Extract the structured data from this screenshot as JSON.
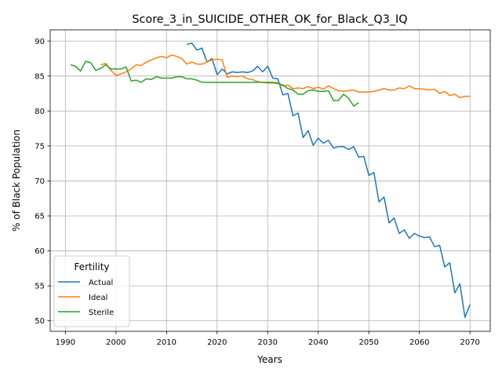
{
  "chart_data": {
    "type": "line",
    "title": "Score_3_in_SUICIDE_OTHER_OK_for_Black_Q3_IQ",
    "xlabel": "Years",
    "ylabel": "% of Black Population",
    "xlim": [
      1987,
      2074
    ],
    "ylim": [
      48.5,
      91.6
    ],
    "xticks": [
      1990,
      2000,
      2010,
      2020,
      2030,
      2040,
      2050,
      2060,
      2070
    ],
    "yticks": [
      50,
      55,
      60,
      65,
      70,
      75,
      80,
      85,
      90
    ],
    "grid": true,
    "legend": {
      "title": "Fertility",
      "position": "lower-left"
    },
    "series": [
      {
        "name": "Actual",
        "color": "#1f77b4",
        "x_start": 2014,
        "values": [
          89.5,
          89.7,
          88.7,
          89.0,
          87.0,
          87.5,
          85.2,
          86.0,
          85.3,
          85.6,
          85.5,
          85.6,
          85.5,
          85.7,
          86.4,
          85.6,
          86.4,
          84.7,
          84.6,
          82.3,
          82.5,
          79.3,
          79.7,
          76.2,
          77.2,
          75.1,
          76.1,
          75.4,
          75.8,
          74.7,
          74.9,
          74.9,
          74.5,
          74.9,
          73.4,
          73.5,
          70.8,
          71.2,
          67.0,
          67.7,
          64.0,
          64.7,
          62.5,
          63.0,
          61.8,
          62.5,
          62.1,
          61.9,
          62.0,
          60.6,
          60.8,
          57.7,
          58.3,
          54.0,
          55.3,
          50.5,
          52.3
        ]
      },
      {
        "name": "Ideal",
        "color": "#ff7f0e",
        "x_start": 1997,
        "values": [
          86.6,
          86.8,
          85.8,
          85.1,
          85.3,
          85.6,
          86.0,
          86.6,
          86.5,
          87.0,
          87.3,
          87.6,
          87.8,
          87.6,
          88.0,
          87.8,
          87.5,
          86.7,
          87.0,
          86.7,
          86.7,
          87.0,
          87.3,
          87.4,
          87.3,
          84.8,
          85.0,
          84.9,
          85.0,
          84.6,
          84.5,
          84.2,
          84.1,
          84.0,
          84.0,
          83.9,
          83.6,
          83.7,
          83.2,
          83.3,
          83.2,
          83.5,
          83.2,
          83.4,
          83.1,
          83.6,
          83.2,
          82.9,
          82.8,
          82.9,
          83.0,
          82.7,
          82.7,
          82.7,
          82.8,
          83.0,
          83.2,
          83.0,
          83.0,
          83.3,
          83.2,
          83.6,
          83.2,
          83.2,
          83.1,
          83.0,
          83.1,
          82.5,
          82.8,
          82.2,
          82.4,
          81.9,
          82.1,
          82.1
        ]
      },
      {
        "name": "Sterile",
        "color": "#2ca02c",
        "x_start": 1991,
        "values": [
          86.6,
          86.4,
          85.7,
          87.1,
          86.9,
          85.8,
          86.1,
          86.6,
          86.0,
          86.0,
          86.0,
          86.3,
          84.3,
          84.4,
          84.1,
          84.6,
          84.5,
          84.9,
          84.7,
          84.7,
          84.7,
          84.9,
          84.9,
          84.6,
          84.6,
          84.4,
          84.1,
          84.1,
          84.1,
          84.1,
          84.1,
          84.1,
          84.1,
          84.1,
          84.1,
          84.1,
          84.1,
          84.1,
          84.1,
          84.1,
          84.1,
          84.0,
          83.7,
          83.2,
          83.0,
          82.4,
          82.4,
          82.9,
          83.0,
          82.8,
          82.8,
          82.9,
          81.5,
          81.5,
          82.4,
          81.8,
          80.7,
          81.2
        ]
      }
    ]
  }
}
